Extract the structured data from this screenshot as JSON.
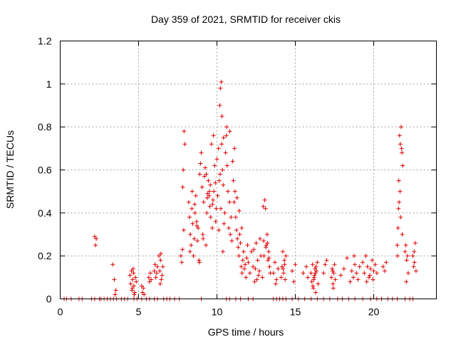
{
  "chart_data": {
    "type": "scatter",
    "title": "Day 359 of 2021, SRMTID for receiver ckis",
    "xlabel": "GPS time / hours",
    "ylabel": "SRMTID / TECUs",
    "xlim": [
      0,
      24
    ],
    "ylim": [
      0,
      1.2
    ],
    "xticks": [
      0,
      5,
      10,
      15,
      20
    ],
    "yticks": [
      0,
      0.2,
      0.4,
      0.6,
      0.8,
      1,
      1.2
    ],
    "xtick_labels": [
      "0",
      "5",
      "10",
      "15",
      "20"
    ],
    "ytick_labels": [
      "0",
      "0.2",
      "0.4",
      "0.6",
      "0.8",
      "1",
      "1.2"
    ],
    "grid": true,
    "marker": "plus",
    "color": "#e00000",
    "series": [
      {
        "name": "SRMTID",
        "x": [
          0.25,
          0.4,
          0.7,
          1.2,
          1.4,
          2.0,
          2.2,
          2.5,
          2.6,
          2.8,
          3.0,
          3.2,
          3.4,
          3.6,
          3.9,
          4.1,
          4.3,
          4.7,
          4.9,
          5.2,
          5.5,
          5.7,
          6.0,
          6.2,
          6.6,
          6.8,
          7.0,
          7.3,
          7.6,
          9.0,
          10.6,
          10.8,
          11.2,
          11.5,
          12.0,
          12.3,
          13.6,
          13.8,
          14.0,
          14.2,
          14.4,
          14.8,
          15.2,
          15.6,
          16.0,
          16.4,
          16.8,
          17.2,
          17.7,
          18.0,
          18.4,
          18.8,
          19.3,
          19.8,
          20.2,
          20.5,
          20.9,
          21.2,
          21.5,
          22.0,
          22.3,
          22.5,
          2.2,
          2.25,
          2.3,
          3.35,
          3.45,
          3.5,
          3.55,
          4.45,
          4.5,
          4.55,
          4.6,
          4.62,
          4.65,
          4.7,
          4.75,
          4.8,
          4.85,
          4.68,
          4.58,
          4.72,
          5.2,
          5.25,
          5.3,
          5.35,
          5.65,
          5.7,
          5.75,
          5.8,
          6.0,
          6.05,
          6.1,
          6.15,
          6.2,
          6.3,
          6.35,
          6.4,
          6.45,
          6.5,
          6.55,
          6.42,
          6.38,
          7.7,
          7.75,
          7.8,
          7.85,
          7.9,
          7.95,
          7.82,
          7.88,
          8.2,
          8.25,
          8.3,
          8.35,
          8.4,
          8.45,
          8.5,
          8.55,
          8.6,
          8.65,
          8.7,
          8.75,
          8.8,
          8.85,
          8.9,
          8.95,
          8.28,
          8.42,
          8.58,
          8.72,
          8.88,
          9.0,
          9.05,
          9.1,
          9.15,
          9.2,
          9.25,
          9.3,
          9.35,
          9.4,
          9.45,
          9.5,
          9.55,
          9.6,
          9.65,
          9.7,
          9.75,
          9.8,
          9.85,
          9.9,
          9.95,
          9.12,
          9.32,
          9.52,
          9.72,
          9.92,
          9.38,
          9.58,
          9.78,
          10.0,
          10.05,
          10.1,
          10.15,
          10.2,
          10.25,
          10.3,
          10.35,
          10.4,
          10.45,
          10.5,
          10.55,
          10.6,
          10.65,
          10.7,
          10.75,
          10.8,
          10.85,
          10.9,
          10.95,
          10.22,
          10.28,
          10.18,
          10.32,
          10.42,
          10.62,
          10.82,
          10.12,
          10.38,
          11.0,
          11.05,
          11.1,
          11.15,
          11.2,
          11.25,
          11.3,
          11.35,
          11.4,
          11.45,
          11.5,
          11.55,
          11.6,
          11.65,
          11.7,
          11.75,
          11.8,
          11.85,
          11.9,
          11.95,
          11.12,
          11.28,
          11.42,
          11.58,
          12.0,
          12.1,
          12.2,
          12.3,
          12.4,
          12.5,
          12.6,
          12.7,
          12.8,
          12.9,
          12.35,
          12.55,
          12.75,
          12.45,
          12.65,
          13.0,
          13.05,
          13.1,
          13.15,
          13.2,
          13.25,
          13.3,
          13.35,
          13.4,
          12.95,
          12.98,
          13.12,
          13.22,
          13.32,
          13.6,
          13.7,
          13.8,
          13.9,
          13.75,
          14.1,
          14.15,
          14.2,
          14.25,
          14.3,
          14.35,
          14.4,
          14.22,
          14.32,
          14.8,
          14.9,
          15.0,
          15.5,
          15.7,
          15.8,
          16.0,
          16.05,
          16.1,
          16.15,
          16.2,
          16.25,
          16.3,
          16.35,
          16.4,
          16.45,
          16.12,
          16.22,
          16.32,
          16.18,
          16.28,
          16.8,
          16.9,
          17.0,
          17.3,
          17.35,
          17.4,
          17.45,
          17.5,
          17.55,
          17.42,
          17.38,
          17.9,
          18.1,
          18.3,
          18.5,
          18.6,
          18.7,
          18.8,
          18.9,
          19.0,
          19.1,
          18.75,
          19.3,
          19.4,
          19.5,
          19.6,
          19.7,
          19.8,
          19.9,
          20.0,
          20.1,
          20.2,
          19.55,
          19.75,
          19.95,
          20.6,
          20.7,
          20.8,
          21.5,
          21.55,
          21.6,
          21.65,
          21.7,
          21.75,
          21.8,
          21.85,
          21.62,
          21.72,
          21.78,
          21.68,
          21.58,
          21.82,
          21.52,
          22.0,
          22.05,
          22.1,
          22.15,
          22.2,
          22.08,
          22.5,
          22.55,
          22.6,
          22.65,
          22.7,
          22.58
        ],
        "y": [
          0,
          0,
          0,
          0,
          0,
          0,
          0,
          0,
          0,
          0,
          0,
          0,
          0,
          0,
          0,
          0,
          0,
          0,
          0,
          0,
          0,
          0,
          0,
          0,
          0,
          0,
          0,
          0,
          0,
          0,
          0,
          0,
          0,
          0,
          0,
          0,
          0,
          0,
          0,
          0,
          0,
          0,
          0,
          0,
          0,
          0,
          0,
          0,
          0,
          0,
          0,
          0,
          0,
          0,
          0,
          0,
          0,
          0,
          0,
          0,
          0,
          0,
          0.29,
          0.25,
          0.28,
          0.16,
          0.09,
          0.02,
          0.04,
          0.11,
          0.07,
          0.13,
          0.05,
          0.09,
          0.14,
          0.06,
          0.03,
          0.1,
          0.08,
          0.12,
          0.04,
          0.02,
          0.06,
          0.03,
          0.05,
          0.02,
          0.1,
          0.08,
          0.12,
          0.09,
          0.13,
          0.16,
          0.1,
          0.12,
          0.15,
          0.2,
          0.13,
          0.18,
          0.09,
          0.11,
          0.15,
          0.21,
          0.07,
          0.2,
          0.17,
          0.23,
          0.6,
          0.78,
          0.72,
          0.52,
          0.32,
          0.45,
          0.38,
          0.3,
          0.25,
          0.42,
          0.35,
          0.2,
          0.28,
          0.4,
          0.48,
          0.36,
          0.27,
          0.33,
          0.18,
          0.58,
          0.63,
          0.22,
          0.5,
          0.44,
          0.34,
          0.17,
          0.68,
          0.52,
          0.3,
          0.45,
          0.57,
          0.61,
          0.25,
          0.4,
          0.49,
          0.55,
          0.48,
          0.43,
          0.38,
          0.72,
          0.33,
          0.46,
          0.5,
          0.62,
          0.54,
          0.42,
          0.28,
          0.58,
          0.5,
          0.44,
          0.36,
          0.47,
          0.53,
          0.76,
          0.65,
          0.48,
          0.7,
          0.55,
          0.58,
          0.42,
          0.72,
          0.6,
          0.53,
          0.35,
          0.4,
          0.68,
          0.76,
          0.62,
          0.5,
          0.33,
          0.45,
          0.3,
          0.38,
          0.27,
          0.98,
          1.01,
          0.9,
          0.85,
          0.75,
          0.8,
          0.78,
          0.32,
          0.22,
          0.64,
          0.55,
          0.45,
          0.5,
          0.38,
          0.32,
          0.28,
          0.24,
          0.2,
          0.3,
          0.26,
          0.15,
          0.12,
          0.18,
          0.22,
          0.14,
          0.16,
          0.1,
          0.19,
          0.25,
          0.7,
          0.47,
          0.41,
          0.33,
          0.17,
          0.12,
          0.22,
          0.15,
          0.08,
          0.26,
          0.18,
          0.13,
          0.2,
          0.1,
          0.23,
          0.09,
          0.28,
          0.14,
          0.11,
          0.2,
          0.46,
          0.42,
          0.25,
          0.3,
          0.18,
          0.22,
          0.15,
          0.12,
          0.43,
          0.27,
          0.24,
          0.26,
          0.19,
          0.12,
          0.17,
          0.09,
          0.14,
          0.07,
          0.1,
          0.15,
          0.22,
          0.12,
          0.18,
          0.09,
          0.2,
          0.14,
          0.16,
          0.13,
          0.08,
          0.16,
          0.12,
          0.15,
          0.1,
          0.12,
          0.08,
          0.16,
          0.05,
          0.1,
          0.14,
          0.03,
          0.13,
          0.17,
          0.07,
          0.06,
          0.11,
          0.15,
          0.09,
          0.12,
          0.12,
          0.16,
          0.18,
          0.1,
          0.14,
          0.07,
          0.12,
          0.16,
          0.09,
          0.05,
          0.13,
          0.11,
          0.14,
          0.19,
          0.08,
          0.13,
          0.1,
          0.16,
          0.12,
          0.09,
          0.15,
          0.2,
          0.17,
          0.12,
          0.2,
          0.15,
          0.1,
          0.14,
          0.18,
          0.13,
          0.16,
          0.12,
          0.08,
          0.11,
          0.09,
          0.15,
          0.13,
          0.17,
          0.25,
          0.33,
          0.55,
          0.76,
          0.72,
          0.8,
          0.68,
          0.62,
          0.45,
          0.38,
          0.7,
          0.5,
          0.42,
          0.3,
          0.2,
          0.22,
          0.25,
          0.18,
          0.2,
          0.12,
          0.08,
          0.2,
          0.15,
          0.17,
          0.26,
          0.13,
          0.22
        ]
      }
    ]
  }
}
